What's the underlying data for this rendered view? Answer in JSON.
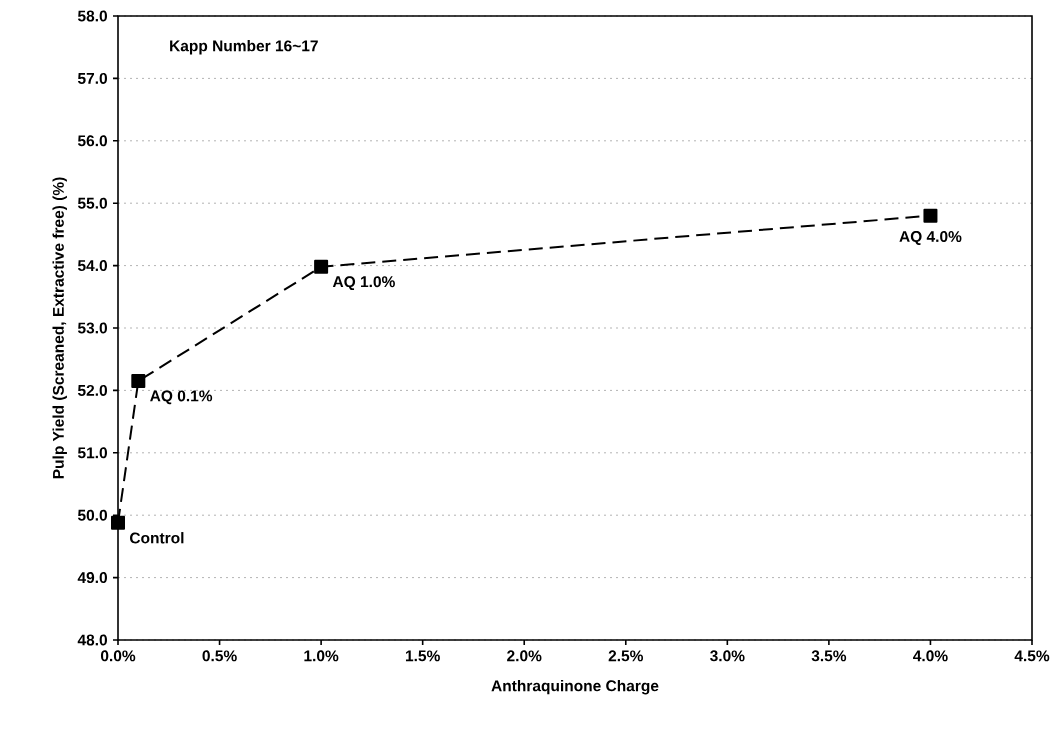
{
  "chart_data": {
    "type": "line",
    "xlabel": "Anthraquinone Charge",
    "ylabel": "Pulp Yield (Screaned, Extractive free) (%)",
    "x": [
      0,
      0.1,
      1.0,
      4.0
    ],
    "series": [
      {
        "color": "#000000",
        "values": [
          49.88,
          52.15,
          53.98,
          54.8
        ]
      }
    ],
    "xlim": [
      0,
      4.5
    ],
    "xticks": [
      {
        "value": 0,
        "label": "0.0%"
      },
      {
        "value": 0.5,
        "label": "0.5%"
      },
      {
        "value": 1,
        "label": "1.0%"
      },
      {
        "value": 1.5,
        "label": "1.5%"
      },
      {
        "value": 2,
        "label": "2.0%"
      },
      {
        "value": 2.5,
        "label": "2.5%"
      },
      {
        "value": 3,
        "label": "3.0%"
      },
      {
        "value": 3.5,
        "label": "3.5%"
      },
      {
        "value": 4,
        "label": "4.0%"
      },
      {
        "value": 4.5,
        "label": "4.5%"
      }
    ],
    "ylim": [
      48,
      58
    ],
    "yticks": [
      {
        "value": 48,
        "label": "48.0"
      },
      {
        "value": 49,
        "label": "49.0"
      },
      {
        "value": 50,
        "label": "50.0"
      },
      {
        "value": 51,
        "label": "51.0"
      },
      {
        "value": 52,
        "label": "52.0"
      },
      {
        "value": 53,
        "label": "53.0"
      },
      {
        "value": 54,
        "label": "54.0"
      },
      {
        "value": 55,
        "label": "55.0"
      },
      {
        "value": 56,
        "label": "56.0"
      },
      {
        "value": 57,
        "label": "57.0"
      },
      {
        "value": 58,
        "label": "58.0"
      }
    ],
    "grid": "y",
    "marker": "square",
    "line_style": "dashed",
    "annotations": [
      "Kapp Number 16~17",
      {
        "text": "Control",
        "x": 0,
        "y": 49.88
      },
      {
        "text": "AQ 0.1%",
        "x": 0.1,
        "y": 52.15
      },
      {
        "text": "AQ 1.0%",
        "x": 1.0,
        "y": 53.98
      },
      {
        "text": "AQ 4.0%",
        "x": 4.0,
        "y": 54.8
      }
    ]
  }
}
